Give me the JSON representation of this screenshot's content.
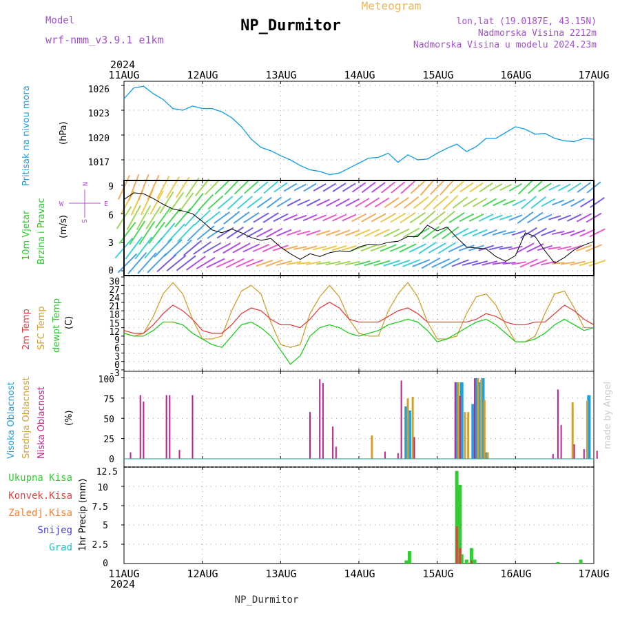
{
  "header": {
    "model_label": "Model",
    "model_name": "wrf-nmm_v3.9.1  e1km",
    "title": "NP_Durmitor",
    "subtitle": "Meteogram",
    "coords": "lon,lat (19.0187E, 43.15N)",
    "elevation": "Nadmorska Visina 2212m",
    "model_elevation": "Nadmorska Visina u modelu 2024.23m"
  },
  "footer": {
    "station": "NP_Durmitor",
    "credit": "made by Angel"
  },
  "time_axis": {
    "year": "2024",
    "dates": [
      "11AUG",
      "12AUG",
      "13AUG",
      "14AUG",
      "15AUG",
      "16AUG",
      "17AUG"
    ]
  },
  "colors": {
    "pressure": "#1ea0e0",
    "wind_label": "#22cc22",
    "wind_compass": "#b050d0",
    "temp2m": "#e04040",
    "sfc": "#d0a030",
    "dewpt": "#22cc22",
    "cloud_high": "#1ea0e0",
    "cloud_mid": "#d0a030",
    "cloud_low": "#c0208a",
    "precip_total": "#33cc33",
    "precip_conv": "#e04040",
    "precip_freezing": "#f08030",
    "precip_snow": "#4040e0",
    "precip_hail": "#20c0c0",
    "header_purple": "#a050d0",
    "header_gold": "#e8b860"
  },
  "panels": {
    "pressure": {
      "label": "Pritisak na nivou mora",
      "unit": "(hPa)",
      "ticks": [
        "1026",
        "1023",
        "1020",
        "1017"
      ]
    },
    "wind": {
      "label1": "10m Vjetar",
      "label2": "Brzina i Pravac",
      "unit": "(m/s)",
      "ticks": [
        "9",
        "6",
        "3",
        "0"
      ],
      "compass": {
        "n": "N",
        "s": "S",
        "w": "W",
        "e": "E"
      }
    },
    "temperature": {
      "label_2m": "2m Temp",
      "label_sfc": "SFC Temp",
      "label_dew": "dewpt Temp",
      "unit": "(C)",
      "ticks": [
        "30",
        "27",
        "24",
        "21",
        "18",
        "15",
        "12",
        "9",
        "6",
        "3",
        "0",
        "-3"
      ]
    },
    "clouds": {
      "label_high": "Visoka Oblacnost",
      "label_mid": "Srednja Oblacnost",
      "label_low": "Niska Oblacnost",
      "unit": "(%)",
      "ticks": [
        "100",
        "75",
        "50",
        "25",
        "0"
      ]
    },
    "precip": {
      "legend": [
        "Ukupna Kisa",
        "Konvek.Kisa",
        "Zaledj.Kisa",
        "Snijeg",
        "Grad"
      ],
      "ylabel": "1hr Precip (mm)",
      "ticks": [
        "12.5",
        "10",
        "7.5",
        "5",
        "2.5",
        "0"
      ]
    }
  },
  "chart_data": [
    {
      "type": "line",
      "title": "Pritisak na nivou mora",
      "ylabel": "(hPa)",
      "ylim": [
        1014.5,
        1026.5
      ],
      "x_hours": [
        0,
        3,
        6,
        9,
        12,
        15,
        18,
        21,
        24,
        27,
        30,
        33,
        36,
        39,
        42,
        45,
        48,
        51,
        54,
        57,
        60,
        63,
        66,
        69,
        72,
        75,
        78,
        81,
        84,
        87,
        90,
        93,
        96,
        99,
        102,
        105,
        108,
        111,
        114,
        117,
        120,
        123,
        126,
        129,
        132,
        135,
        138,
        141,
        144
      ],
      "series": [
        {
          "name": "Pritisak na nivou mora",
          "values": [
            1024.4,
            1025.7,
            1025.9,
            1025.0,
            1024.3,
            1023.2,
            1023.0,
            1023.5,
            1023.2,
            1023.2,
            1022.8,
            1022.1,
            1021.0,
            1019.5,
            1018.5,
            1018.1,
            1017.5,
            1017.0,
            1016.3,
            1015.8,
            1015.6,
            1015.2,
            1015.4,
            1016.0,
            1016.6,
            1017.2,
            1017.3,
            1017.8,
            1016.7,
            1017.6,
            1017.0,
            1017.1,
            1017.8,
            1018.4,
            1018.9,
            1018.0,
            1018.6,
            1019.6,
            1019.6,
            1020.3,
            1021.0,
            1020.7,
            1020.1,
            1020.2,
            1019.6,
            1019.3,
            1019.2,
            1019.6,
            1019.5
          ]
        }
      ],
      "grid": true
    },
    {
      "type": "line",
      "title": "10m Vjetar Brzina i Pravac",
      "ylabel": "(m/s)",
      "ylim": [
        -0.5,
        9.5
      ],
      "x_hours": [
        0,
        3,
        6,
        9,
        12,
        15,
        18,
        21,
        24,
        27,
        30,
        33,
        36,
        39,
        42,
        45,
        48,
        51,
        54,
        57,
        60,
        63,
        66,
        69,
        72,
        75,
        78,
        81,
        84,
        87,
        90,
        93,
        96,
        99,
        102,
        105,
        108,
        111,
        114,
        117,
        120,
        123,
        126,
        129,
        132,
        135,
        138,
        141,
        144
      ],
      "series": [
        {
          "name": "10m Vjetar",
          "values": [
            7.5,
            8.2,
            8.1,
            7.6,
            7.0,
            6.5,
            6.3,
            6.0,
            5.2,
            4.3,
            4.0,
            4.4,
            4.0,
            3.5,
            3.2,
            3.4,
            2.5,
            1.8,
            1.2,
            1.8,
            1.5,
            1.9,
            2.1,
            2.0,
            2.5,
            2.8,
            2.7,
            3.0,
            3.1,
            3.6,
            3.6,
            4.8,
            4.2,
            4.6,
            3.5,
            2.5,
            2.4,
            2.3,
            1.5,
            1.0,
            1.6,
            4.0,
            3.6,
            2.1,
            0.8,
            1.4,
            2.2,
            2.7,
            3.1
          ]
        }
      ],
      "grid": true
    },
    {
      "type": "line",
      "title": "2m Temp / SFC Temp / dewpt Temp",
      "ylabel": "(C)",
      "ylim": [
        -3.5,
        30.5
      ],
      "x_hours": [
        0,
        3,
        6,
        9,
        12,
        15,
        18,
        21,
        24,
        27,
        30,
        33,
        36,
        39,
        42,
        45,
        48,
        51,
        54,
        57,
        60,
        63,
        66,
        69,
        72,
        75,
        78,
        81,
        84,
        87,
        90,
        93,
        96,
        99,
        102,
        105,
        108,
        111,
        114,
        117,
        120,
        123,
        126,
        129,
        132,
        135,
        138,
        141,
        144
      ],
      "series": [
        {
          "name": "2m Temp",
          "values": [
            11,
            10,
            10,
            13,
            17,
            20,
            18,
            15,
            11,
            10,
            10,
            13,
            17,
            19,
            18,
            15,
            13,
            13,
            12,
            15,
            19,
            21,
            19,
            15,
            14,
            14,
            14,
            16,
            18,
            19,
            17,
            14,
            14,
            14,
            14,
            14,
            15,
            17,
            16,
            14,
            13,
            13,
            14,
            14,
            17,
            20,
            18,
            15,
            13
          ]
        },
        {
          "name": "SFC Temp",
          "values": [
            10,
            9,
            10,
            16,
            24,
            28,
            24,
            15,
            8,
            8,
            9,
            18,
            25,
            27,
            24,
            14,
            6,
            5,
            6,
            17,
            23,
            27,
            23,
            15,
            10,
            9,
            9,
            18,
            24,
            28,
            23,
            14,
            8,
            8,
            9,
            17,
            23,
            24,
            20,
            13,
            7,
            7,
            9,
            17,
            24,
            25,
            19,
            12,
            12
          ]
        },
        {
          "name": "dewpt Temp",
          "values": [
            10,
            9,
            9,
            11,
            14,
            14,
            13,
            10,
            8,
            6,
            5,
            9,
            13,
            14,
            12,
            9,
            4,
            -1,
            2,
            9,
            12,
            13,
            12,
            10,
            9,
            10,
            11,
            13,
            14,
            15,
            14,
            11,
            7,
            8,
            10,
            12,
            14,
            15,
            13,
            10,
            7,
            7,
            8,
            10,
            13,
            15,
            13,
            11,
            12
          ]
        }
      ],
      "grid": true
    },
    {
      "type": "bar",
      "title": "Visoka / Srednja / Niska Oblacnost",
      "ylabel": "(%)",
      "ylim": [
        0,
        100
      ],
      "series": [
        {
          "name": "Visoka Oblacnost",
          "points": [
            [
              86.5,
              65
            ],
            [
              87.5,
              60
            ],
            [
              102,
              95
            ],
            [
              103.5,
              95
            ],
            [
              107,
              68
            ],
            [
              108,
              100
            ],
            [
              109,
              95
            ],
            [
              110,
              100
            ],
            [
              111,
              8
            ],
            [
              142.5,
              79
            ]
          ]
        },
        {
          "name": "Srednja Oblacnost",
          "points": [
            [
              76,
              29
            ],
            [
              87,
              75
            ],
            [
              88.5,
              77
            ],
            [
              102.5,
              95
            ],
            [
              104.5,
              58
            ],
            [
              105.5,
              58
            ],
            [
              108.5,
              100
            ],
            [
              109.5,
              98
            ],
            [
              110.5,
              73
            ],
            [
              111.5,
              8
            ],
            [
              137.5,
              70
            ],
            [
              142,
              72
            ]
          ]
        },
        {
          "name": "Niska Oblacnost",
          "points": [
            [
              2,
              8
            ],
            [
              5,
              79
            ],
            [
              6,
              71
            ],
            [
              13,
              79
            ],
            [
              14,
              79
            ],
            [
              17,
              11
            ],
            [
              21,
              79
            ],
            [
              57,
              58
            ],
            [
              60,
              99
            ],
            [
              61,
              94
            ],
            [
              64,
              40
            ],
            [
              65,
              15
            ],
            [
              80,
              9
            ],
            [
              84,
              7
            ],
            [
              85,
              97
            ],
            [
              89,
              27
            ],
            [
              101.5,
              95
            ],
            [
              103,
              78
            ],
            [
              107.5,
              100
            ],
            [
              131.5,
              6
            ],
            [
              133,
              86
            ],
            [
              134,
              42
            ],
            [
              138,
              18
            ],
            [
              141,
              12
            ],
            [
              145,
              10
            ]
          ]
        }
      ],
      "grid": true
    },
    {
      "type": "bar",
      "title": "1hr Precip",
      "ylabel": "1hr Precip (mm)",
      "ylim": [
        0,
        12.5
      ],
      "series": [
        {
          "name": "Ukupna Kisa",
          "points": [
            [
              86.5,
              0.4
            ],
            [
              87.5,
              1.6
            ],
            [
              102,
              12.0
            ],
            [
              103,
              10.2
            ],
            [
              103.5,
              1.2
            ],
            [
              105,
              0.5
            ],
            [
              106.5,
              2.0
            ],
            [
              107.5,
              0.5
            ],
            [
              133,
              0.2
            ],
            [
              140,
              0.5
            ]
          ]
        },
        {
          "name": "Konvek.Kisa",
          "points": [
            [
              102,
              4.8
            ],
            [
              103,
              2.0
            ],
            [
              106.5,
              0.4
            ]
          ]
        },
        {
          "name": "Zaledj.Kisa",
          "points": []
        },
        {
          "name": "Snijeg",
          "points": []
        },
        {
          "name": "Grad",
          "points": []
        }
      ],
      "grid": true
    }
  ]
}
